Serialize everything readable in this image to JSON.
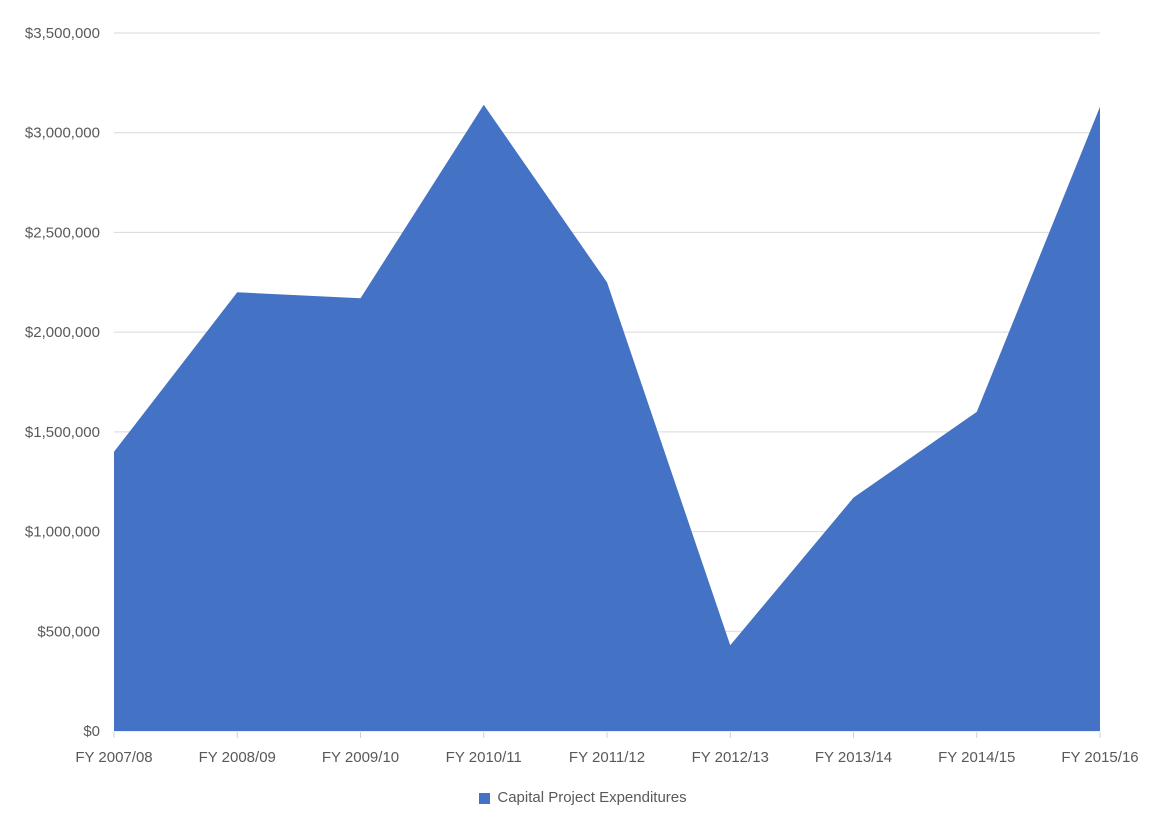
{
  "chart_data": {
    "type": "area",
    "title": "",
    "xlabel": "",
    "ylabel": "",
    "categories": [
      "FY 2007/08",
      "FY 2008/09",
      "FY 2009/10",
      "FY 2010/11",
      "FY 2011/12",
      "FY 2012/13",
      "FY 2013/14",
      "FY 2014/15",
      "FY 2015/16"
    ],
    "series": [
      {
        "name": "Capital Project Expenditures",
        "color": "#4472C4",
        "values": [
          1400000,
          2200000,
          2170000,
          3140000,
          2250000,
          430000,
          1170000,
          1600000,
          3130000
        ]
      }
    ],
    "ylim": [
      0,
      3500000
    ],
    "ytick_step": 500000,
    "ytick_labels": [
      "$0",
      "$500,000",
      "$1,000,000",
      "$1,500,000",
      "$2,000,000",
      "$2,500,000",
      "$3,000,000",
      "$3,500,000"
    ],
    "grid": true,
    "legend_position": "bottom",
    "colors": {
      "series_fill": "#4472C4",
      "gridline": "#D9D9D9",
      "tick_mark": "#D0D0D0",
      "axis_text": "#595959",
      "background": "#FFFFFF"
    }
  },
  "legend": {
    "label": "Capital Project Expenditures"
  }
}
